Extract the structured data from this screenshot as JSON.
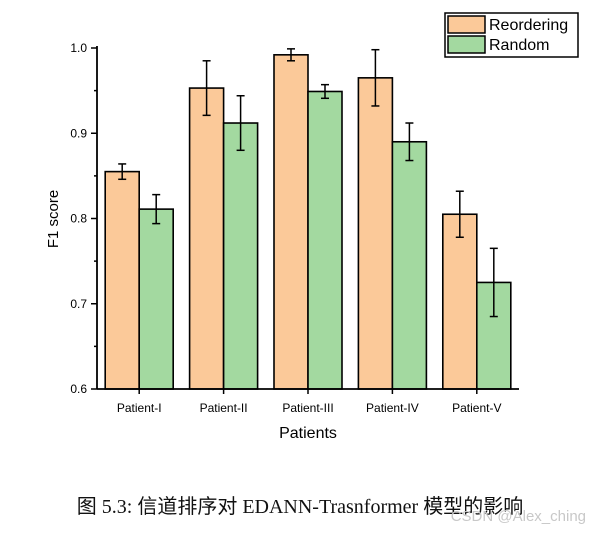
{
  "chart_data": {
    "type": "bar",
    "categories": [
      "Patient-I",
      "Patient-II",
      "Patient-III",
      "Patient-IV",
      "Patient-V"
    ],
    "series": [
      {
        "name": "Reordering",
        "color": "#fbc999",
        "values": [
          0.855,
          0.953,
          0.992,
          0.965,
          0.805
        ],
        "errors": [
          0.009,
          0.032,
          0.007,
          0.033,
          0.027
        ]
      },
      {
        "name": "Random",
        "color": "#a3d9a0",
        "values": [
          0.811,
          0.912,
          0.949,
          0.89,
          0.725
        ],
        "errors": [
          0.017,
          0.032,
          0.008,
          0.022,
          0.04
        ]
      }
    ],
    "xlabel": "Patients",
    "ylabel": "F1 score",
    "ylim": [
      0.6,
      1.0
    ],
    "yticks": [
      "0.6",
      "0.7",
      "0.8",
      "0.9",
      "1.0"
    ],
    "legend_position": "top-right"
  },
  "caption": "图 5.3: 信道排序对 EDANN-Trasnformer 模型的影响",
  "watermark": "CSDN @Alex_ching"
}
